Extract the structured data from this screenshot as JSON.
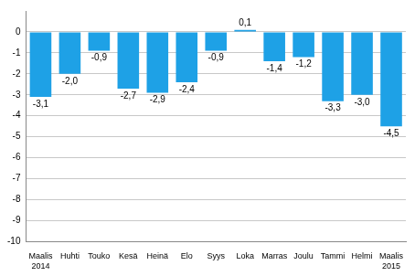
{
  "chart_data": {
    "type": "bar",
    "categories": [
      [
        "Maalis",
        "2014"
      ],
      [
        "Huhti"
      ],
      [
        "Touko"
      ],
      [
        "Kesä"
      ],
      [
        "Heinä"
      ],
      [
        "Elo"
      ],
      [
        "Syys"
      ],
      [
        "Loka"
      ],
      [
        "Marras"
      ],
      [
        "Joulu"
      ],
      [
        "Tammi"
      ],
      [
        "Helmi"
      ],
      [
        "Maalis",
        "2015"
      ]
    ],
    "values": [
      -3.1,
      -2.0,
      -0.9,
      -2.7,
      -2.9,
      -2.4,
      -0.9,
      0.1,
      -1.4,
      -1.2,
      -3.3,
      -3.0,
      -4.5
    ],
    "value_labels": [
      "-3,1",
      "-2,0",
      "-0,9",
      "-2,7",
      "-2,9",
      "-2,4",
      "-0,9",
      "0,1",
      "-1,4",
      "-1,2",
      "-3,3",
      "-3,0",
      "-4,5"
    ],
    "data_labels": true,
    "color": "#1ea1e6",
    "ylim": [
      -10,
      1
    ],
    "yticks": [
      -10,
      -9,
      -8,
      -7,
      -6,
      -5,
      -4,
      -3,
      -2,
      -1,
      0
    ],
    "grid": true
  }
}
